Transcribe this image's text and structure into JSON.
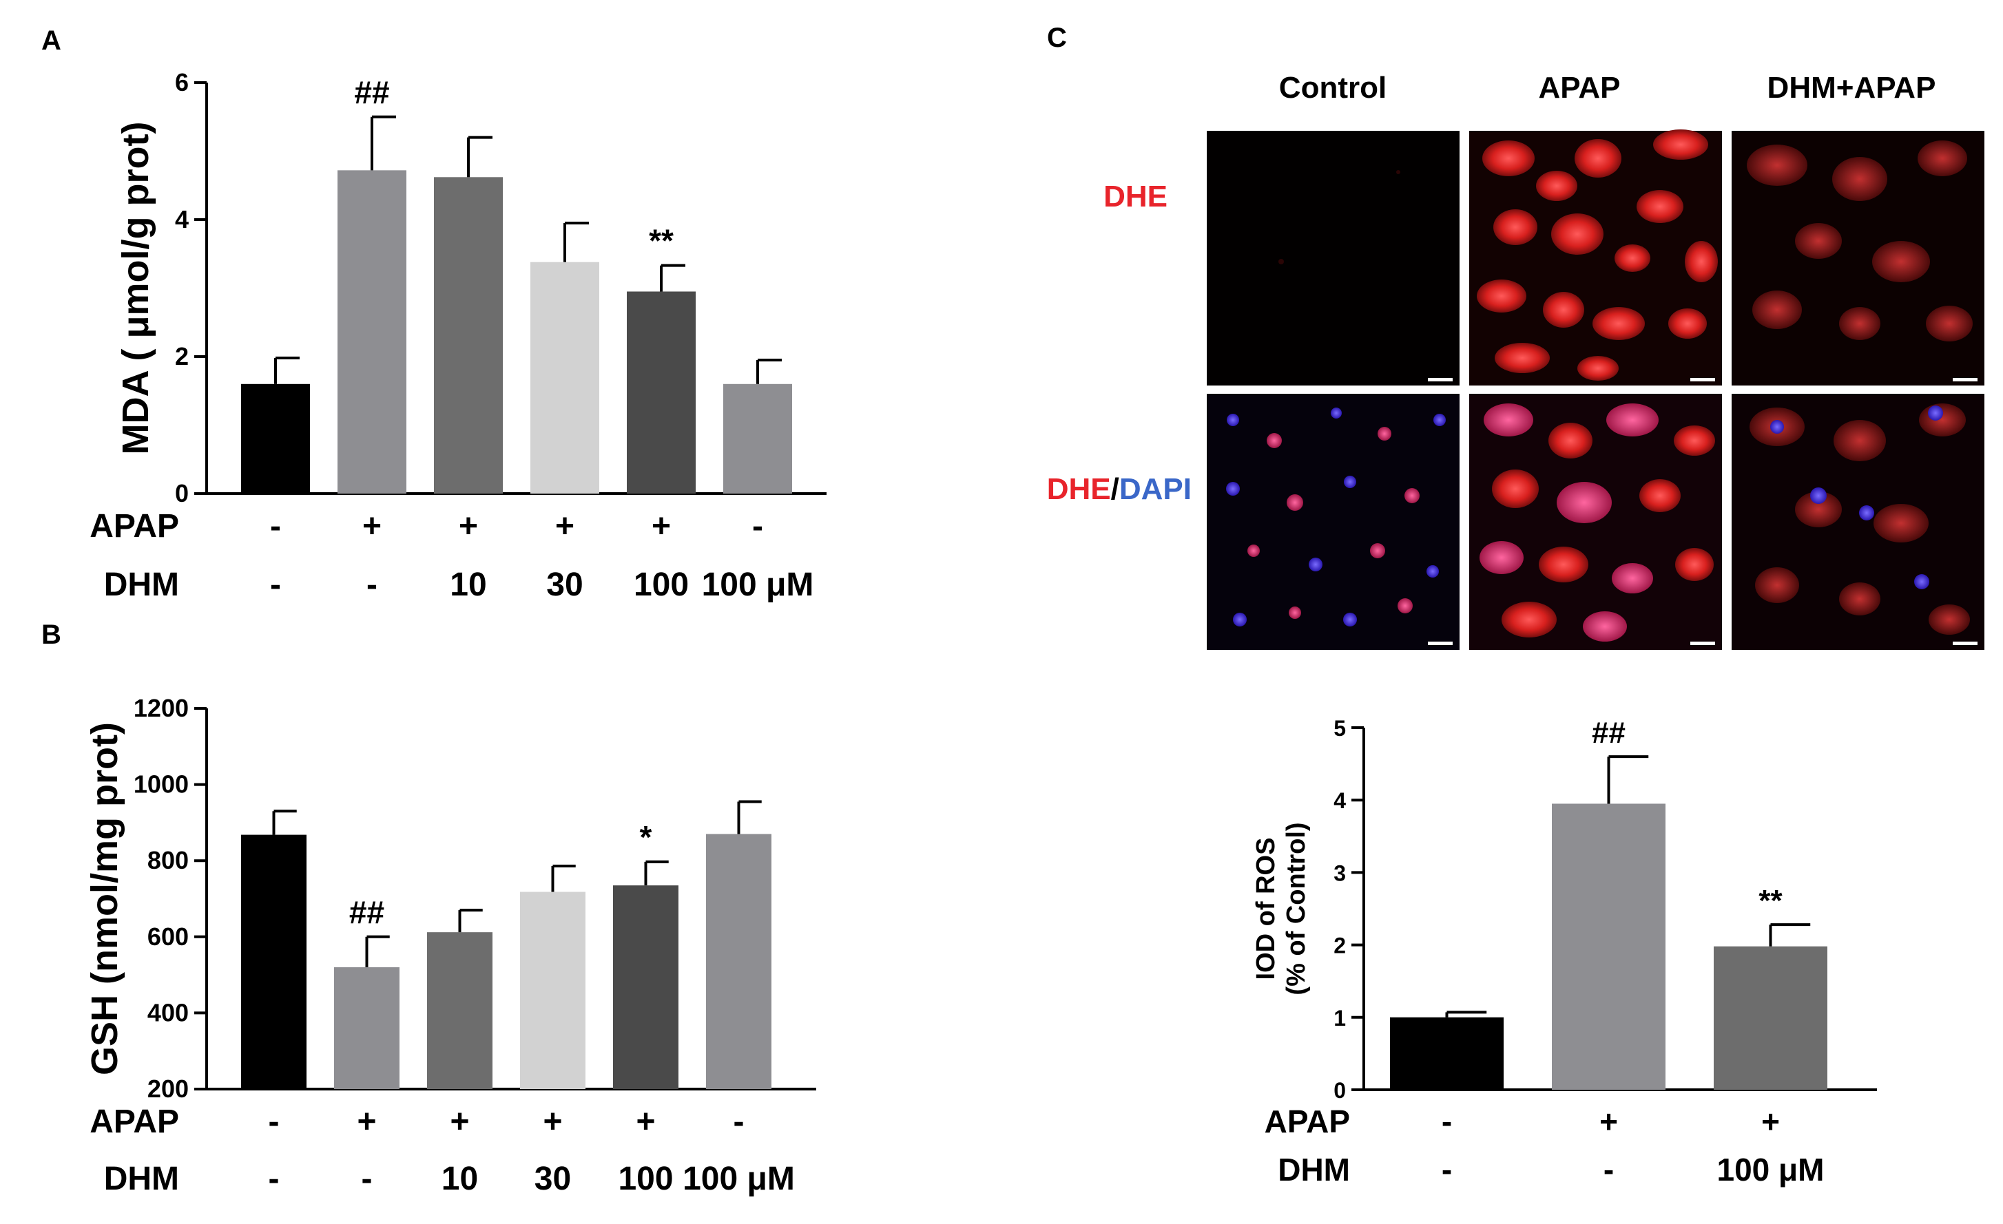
{
  "panels": {
    "A": "A",
    "B": "B",
    "C": "C"
  },
  "chart_data": [
    {
      "panel": "A",
      "type": "bar",
      "ylabel": "MDA ( μmol/g prot)",
      "ylim": [
        0,
        6
      ],
      "yticks": [
        "0",
        "2",
        "4",
        "6"
      ],
      "colors": [
        "#000000",
        "#8e8e92",
        "#6d6d6d",
        "#d2d2d2",
        "#4a4a4a",
        "#8e8e92"
      ],
      "values": [
        1.6,
        4.72,
        4.62,
        3.38,
        2.95,
        1.6
      ],
      "errors": [
        0.38,
        0.78,
        0.58,
        0.57,
        0.38,
        0.35
      ],
      "sig": [
        "",
        "##",
        "",
        "",
        "**",
        ""
      ],
      "rows": [
        {
          "label": "APAP",
          "values": [
            "-",
            "+",
            "+",
            "+",
            "+",
            "-"
          ]
        },
        {
          "label": "DHM",
          "values": [
            "-",
            "-",
            "10",
            "30",
            "100",
            "100 μM"
          ]
        }
      ]
    },
    {
      "panel": "B",
      "type": "bar",
      "ylabel": "GSH (nmol/mg prot)",
      "ylim": [
        200,
        1200
      ],
      "yticks": [
        "200",
        "400",
        "600",
        "800",
        "1000",
        "1200"
      ],
      "colors": [
        "#000000",
        "#8e8e92",
        "#6d6d6d",
        "#d2d2d2",
        "#4a4a4a",
        "#8e8e92"
      ],
      "values": [
        868,
        520,
        612,
        718,
        735,
        870
      ],
      "errors": [
        62,
        80,
        58,
        68,
        62,
        85
      ],
      "sig": [
        "",
        "##",
        "",
        "",
        "*",
        ""
      ],
      "rows": [
        {
          "label": "APAP",
          "values": [
            "-",
            "+",
            "+",
            "+",
            "+",
            "-"
          ]
        },
        {
          "label": "DHM",
          "values": [
            "-",
            "-",
            "10",
            "30",
            "100",
            "100 μM"
          ]
        }
      ]
    },
    {
      "panel": "C",
      "type": "bar",
      "ylabel": [
        "IOD  of ROS",
        "(% of  Control)"
      ],
      "ylim": [
        0,
        5
      ],
      "yticks": [
        "0",
        "1",
        "2",
        "3",
        "4",
        "5"
      ],
      "colors": [
        "#000000",
        "#8e8e92",
        "#6d6d6d"
      ],
      "values": [
        1.0,
        3.95,
        1.98
      ],
      "errors": [
        0.07,
        0.65,
        0.3
      ],
      "sig": [
        "",
        "##",
        "**"
      ],
      "rows": [
        {
          "label": "APAP",
          "values": [
            "-",
            "+",
            "+"
          ]
        },
        {
          "label": "DHM",
          "values": [
            "-",
            "-",
            "100 μM"
          ]
        }
      ]
    }
  ],
  "micrographs": {
    "columns": [
      "Control",
      "APAP",
      "DHM+APAP"
    ],
    "rows": [
      {
        "label_parts": [
          {
            "text": "DHE",
            "color": "#e8242b"
          }
        ]
      },
      {
        "label_parts": [
          {
            "text": "DHE",
            "color": "#e8242b"
          },
          {
            "text": "/",
            "color": "#000000"
          },
          {
            "text": "DAPI",
            "color": "#3a67c8"
          }
        ]
      }
    ]
  }
}
